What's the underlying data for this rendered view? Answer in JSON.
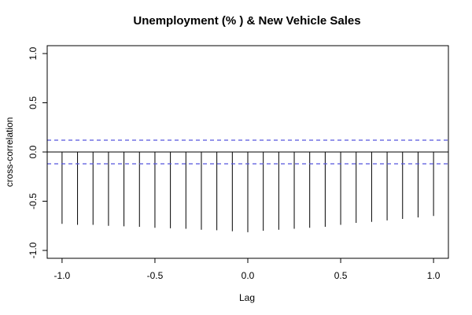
{
  "chart_data": {
    "type": "bar",
    "title": "Unemployment (% ) & New Vehicle Sales",
    "xlabel": "Lag",
    "ylabel": "cross-correlation",
    "xlim": [
      -1.08,
      1.08
    ],
    "ylim": [
      -1.08,
      1.08
    ],
    "x_ticks": [
      -1.0,
      -0.5,
      0.0,
      0.5,
      1.0
    ],
    "x_tick_labels": [
      "-1.0",
      "-0.5",
      "0.0",
      "0.5",
      "1.0"
    ],
    "y_ticks": [
      -1.0,
      -0.5,
      0.0,
      0.5,
      1.0
    ],
    "y_tick_labels": [
      "-1.0",
      "-0.5",
      "0.0",
      "0.5",
      "1.0"
    ],
    "confidence_bounds": [
      0.12,
      -0.12
    ],
    "confidence_color": "#5555dd",
    "x": [
      -1.0,
      -0.9167,
      -0.8333,
      -0.75,
      -0.6667,
      -0.5833,
      -0.5,
      -0.4167,
      -0.3333,
      -0.25,
      -0.1667,
      -0.0833,
      0.0,
      0.0833,
      0.1667,
      0.25,
      0.3333,
      0.4167,
      0.5,
      0.5833,
      0.6667,
      0.75,
      0.8333,
      0.9167,
      1.0
    ],
    "values": [
      -0.73,
      -0.74,
      -0.74,
      -0.75,
      -0.755,
      -0.76,
      -0.77,
      -0.775,
      -0.78,
      -0.79,
      -0.795,
      -0.805,
      -0.815,
      -0.8,
      -0.79,
      -0.78,
      -0.77,
      -0.76,
      -0.74,
      -0.72,
      -0.71,
      -0.695,
      -0.68,
      -0.665,
      -0.65
    ],
    "grid": false
  }
}
